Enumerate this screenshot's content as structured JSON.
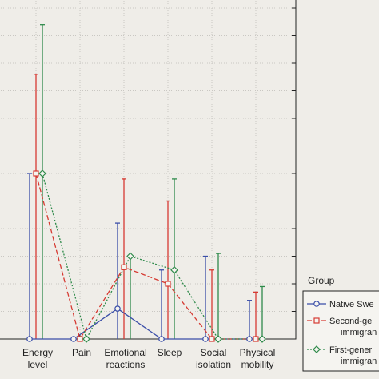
{
  "chart_data": {
    "type": "line",
    "categories": [
      "Energy\nlevel",
      "Pain",
      "Emotional\nreactions",
      "Sleep",
      "Social\nisolation",
      "Physical\nmobility"
    ],
    "ylim": [
      0,
      12
    ],
    "grid": true,
    "legend_position": "bottom-right",
    "legend_title": "Group",
    "series": [
      {
        "name": "Native Swe...",
        "color": "#3a4ea8",
        "dash": "solid",
        "marker": "circle",
        "values": [
          0,
          0,
          1.1,
          0,
          0,
          0
        ],
        "upper": [
          6,
          0,
          4.2,
          2.5,
          3,
          1.4
        ],
        "lower": [
          0,
          0,
          0,
          0,
          0,
          0
        ]
      },
      {
        "name": "Second-ge... immigran...",
        "color": "#d63a32",
        "dash": "dashed",
        "marker": "square",
        "values": [
          6,
          0,
          2.6,
          2,
          0,
          0
        ],
        "upper": [
          9.6,
          0,
          5.8,
          5,
          2.5,
          1.7
        ],
        "lower": [
          0,
          0,
          0,
          0,
          0,
          0
        ]
      },
      {
        "name": "First-gener... immigran...",
        "color": "#2e8a4a",
        "dash": "dotted",
        "marker": "diamond",
        "values": [
          6,
          0,
          3,
          2.5,
          0,
          0
        ],
        "upper": [
          11.4,
          0,
          3,
          5.8,
          3.1,
          1.9
        ],
        "lower": [
          0,
          0,
          0,
          0,
          0,
          0
        ]
      }
    ]
  },
  "legend": {
    "title": "Group",
    "items": [
      {
        "line1": "Native Swe",
        "line2": ""
      },
      {
        "line1": "Second-ge",
        "line2": "immigran"
      },
      {
        "line1": "First-gener",
        "line2": "immigran"
      }
    ]
  }
}
